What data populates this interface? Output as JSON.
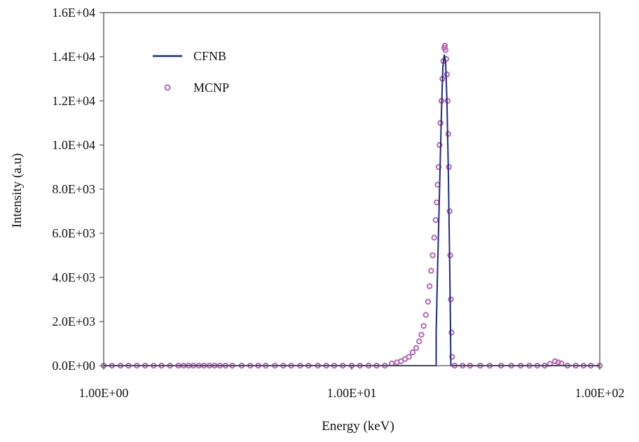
{
  "chart_data": {
    "type": "line",
    "title": "",
    "xlabel": "Energy (keV)",
    "ylabel": "Intensity (a.u)",
    "x_scale": "log",
    "xlim": [
      1,
      100
    ],
    "ylim": [
      0,
      16000
    ],
    "grid": false,
    "legend_position": "top-left",
    "x_tick_values": [
      1,
      10,
      100
    ],
    "x_tick_labels": [
      "1.00E+00",
      "1.00E+01",
      "1.00E+02"
    ],
    "y_tick_values": [
      0,
      2000,
      4000,
      6000,
      8000,
      10000,
      12000,
      14000,
      16000
    ],
    "y_tick_labels": [
      "0.0E+00",
      "2.0E+03",
      "4.0E+03",
      "6.0E+03",
      "8.0E+03",
      "1.0E+04",
      "1.2E+04",
      "1.4E+04",
      "1.6E+04"
    ],
    "series": [
      {
        "name": "CFNB",
        "style": "line",
        "color": "#1f2a78",
        "points": [
          [
            1.0,
            0
          ],
          [
            5.0,
            0
          ],
          [
            10.0,
            0
          ],
          [
            15.0,
            0
          ],
          [
            20.0,
            0
          ],
          [
            21.9,
            0
          ],
          [
            21.9,
            1500
          ],
          [
            22.2,
            4500
          ],
          [
            22.6,
            8000
          ],
          [
            23.0,
            11500
          ],
          [
            23.3,
            13500
          ],
          [
            23.6,
            14100
          ],
          [
            23.9,
            13800
          ],
          [
            24.2,
            12000
          ],
          [
            24.5,
            9000
          ],
          [
            24.8,
            5000
          ],
          [
            25.0,
            2000
          ],
          [
            25.1,
            0
          ],
          [
            30.0,
            0
          ],
          [
            50.0,
            0
          ],
          [
            100.0,
            0
          ]
        ]
      },
      {
        "name": "MCNP",
        "style": "markers",
        "color": "#b469b4",
        "points": [
          [
            1.0,
            0
          ],
          [
            1.08,
            0
          ],
          [
            1.17,
            0
          ],
          [
            1.26,
            0
          ],
          [
            1.36,
            0
          ],
          [
            1.47,
            0
          ],
          [
            1.59,
            0
          ],
          [
            1.71,
            0
          ],
          [
            1.85,
            0
          ],
          [
            2.0,
            0
          ],
          [
            2.1,
            0
          ],
          [
            2.2,
            0
          ],
          [
            2.3,
            0
          ],
          [
            2.42,
            0
          ],
          [
            2.54,
            0
          ],
          [
            2.67,
            0
          ],
          [
            2.8,
            0
          ],
          [
            2.94,
            0
          ],
          [
            3.1,
            0
          ],
          [
            3.3,
            0
          ],
          [
            3.6,
            0
          ],
          [
            3.9,
            0
          ],
          [
            4.2,
            0
          ],
          [
            4.5,
            0
          ],
          [
            4.9,
            0
          ],
          [
            5.3,
            0
          ],
          [
            5.7,
            0
          ],
          [
            6.2,
            0
          ],
          [
            6.7,
            0
          ],
          [
            7.3,
            0
          ],
          [
            7.9,
            0
          ],
          [
            8.5,
            0
          ],
          [
            9.2,
            0
          ],
          [
            10.0,
            0
          ],
          [
            10.8,
            0
          ],
          [
            11.7,
            0
          ],
          [
            12.6,
            0
          ],
          [
            13.6,
            0
          ],
          [
            14.5,
            100
          ],
          [
            15.2,
            150
          ],
          [
            15.8,
            200
          ],
          [
            16.4,
            300
          ],
          [
            17.0,
            400
          ],
          [
            17.6,
            600
          ],
          [
            18.2,
            800
          ],
          [
            18.7,
            1100
          ],
          [
            19.1,
            1400
          ],
          [
            19.5,
            1800
          ],
          [
            19.9,
            2300
          ],
          [
            20.3,
            2900
          ],
          [
            20.6,
            3600
          ],
          [
            20.9,
            4300
          ],
          [
            21.2,
            5000
          ],
          [
            21.5,
            5800
          ],
          [
            21.8,
            6600
          ],
          [
            22.0,
            7400
          ],
          [
            22.2,
            8200
          ],
          [
            22.4,
            9000
          ],
          [
            22.6,
            10000
          ],
          [
            22.8,
            11000
          ],
          [
            23.0,
            12000
          ],
          [
            23.2,
            13000
          ],
          [
            23.4,
            13800
          ],
          [
            23.6,
            14400
          ],
          [
            23.75,
            14500
          ],
          [
            23.9,
            14300
          ],
          [
            24.05,
            13900
          ],
          [
            24.2,
            13200
          ],
          [
            24.35,
            12000
          ],
          [
            24.5,
            10500
          ],
          [
            24.65,
            9000
          ],
          [
            24.8,
            7000
          ],
          [
            24.95,
            5000
          ],
          [
            25.1,
            3000
          ],
          [
            25.25,
            1500
          ],
          [
            25.4,
            400
          ],
          [
            26.0,
            0
          ],
          [
            28.0,
            0
          ],
          [
            30.0,
            0
          ],
          [
            33.0,
            0
          ],
          [
            36.0,
            0
          ],
          [
            40.0,
            0
          ],
          [
            44.0,
            0
          ],
          [
            48.0,
            0
          ],
          [
            52.0,
            0
          ],
          [
            56.0,
            0
          ],
          [
            60.0,
            0
          ],
          [
            63.0,
            80
          ],
          [
            66.0,
            200
          ],
          [
            68.0,
            150
          ],
          [
            70.0,
            100
          ],
          [
            74.0,
            0
          ],
          [
            80.0,
            0
          ],
          [
            86.0,
            0
          ],
          [
            92.0,
            0
          ],
          [
            100.0,
            0
          ]
        ]
      }
    ]
  }
}
